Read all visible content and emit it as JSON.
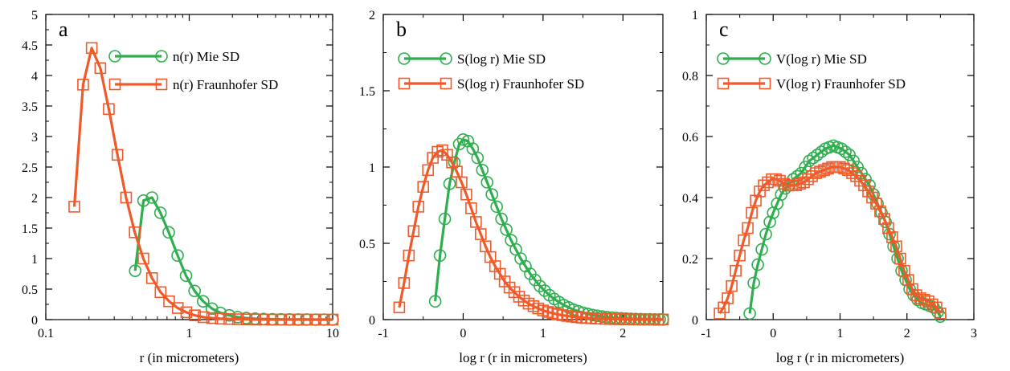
{
  "colors": {
    "mie": "#2eae4e",
    "fraunhofer": "#f05a2a",
    "axis": "#000000"
  },
  "chart_data": [
    {
      "type": "line",
      "panel_label": "a",
      "xlabel": "r (in micrometers)",
      "ylabel": "",
      "xscale": "log",
      "xlim": [
        0.1,
        10
      ],
      "ylim": [
        0,
        5
      ],
      "xticks": [
        0.1,
        1,
        10
      ],
      "xticklabels": [
        "0.1",
        "1",
        "10"
      ],
      "yticks": [
        0,
        0.5,
        1,
        1.5,
        2,
        2.5,
        3,
        3.5,
        4,
        4.5,
        5
      ],
      "yticklabels": [
        "0",
        "0.5",
        "1",
        "1.5",
        "2",
        "2.5",
        "3",
        "3.5",
        "4",
        "4.5",
        "5"
      ],
      "legend_position": "top-right",
      "grid": false,
      "series": [
        {
          "name": "n(r) Mie SD",
          "marker": "circle",
          "x": [
            0.42,
            0.48,
            0.55,
            0.63,
            0.72,
            0.83,
            0.95,
            1.09,
            1.25,
            1.44,
            1.65,
            1.9,
            2.18,
            2.5,
            2.88,
            3.3,
            3.8,
            4.36,
            5.0,
            5.75,
            6.6,
            7.6,
            8.7,
            10.0
          ],
          "y": [
            0.8,
            1.95,
            2.0,
            1.75,
            1.43,
            1.05,
            0.72,
            0.47,
            0.3,
            0.18,
            0.11,
            0.07,
            0.04,
            0.025,
            0.015,
            0.01,
            0.006,
            0.004,
            0.002,
            0.001,
            0.001,
            0.0,
            0.0,
            0.0
          ]
        },
        {
          "name": "n(r) Fraunhofer SD",
          "marker": "square",
          "x": [
            0.158,
            0.182,
            0.209,
            0.24,
            0.275,
            0.316,
            0.363,
            0.417,
            0.479,
            0.55,
            0.631,
            0.724,
            0.832,
            0.955,
            1.096,
            1.259,
            1.445,
            1.66,
            1.905,
            2.188,
            2.512,
            2.884,
            3.311,
            3.802,
            4.365,
            5.012,
            5.754,
            6.607,
            7.586,
            8.71,
            10.0
          ],
          "y": [
            1.85,
            3.85,
            4.45,
            4.12,
            3.45,
            2.7,
            2.0,
            1.43,
            1.0,
            0.68,
            0.45,
            0.3,
            0.19,
            0.12,
            0.07,
            0.04,
            0.025,
            0.015,
            0.01,
            0.006,
            0.004,
            0.002,
            0.001,
            0.0,
            0.0,
            0.0,
            0.0,
            0.0,
            0.0,
            0.0,
            0.0
          ]
        }
      ]
    },
    {
      "type": "line",
      "panel_label": "b",
      "xlabel": "log r (r in micrometers)",
      "ylabel": "",
      "xscale": "linear",
      "xlim": [
        -1,
        2.5
      ],
      "ylim": [
        0,
        2
      ],
      "xticks": [
        -1,
        0,
        1,
        2
      ],
      "xticklabels": [
        "-1",
        "0",
        "1",
        "2"
      ],
      "yticks": [
        0,
        0.5,
        1,
        1.5,
        2
      ],
      "yticklabels": [
        "0",
        "0.5",
        "1",
        "1.5",
        "2"
      ],
      "legend_position": "top-right",
      "grid": false,
      "series": [
        {
          "name": "S(log r) Mie SD",
          "marker": "circle",
          "x": [
            -0.35,
            -0.29,
            -0.23,
            -0.17,
            -0.11,
            -0.05,
            0.0,
            0.06,
            0.12,
            0.18,
            0.24,
            0.3,
            0.36,
            0.42,
            0.48,
            0.54,
            0.6,
            0.66,
            0.72,
            0.78,
            0.84,
            0.9,
            0.96,
            1.02,
            1.08,
            1.14,
            1.2,
            1.26,
            1.32,
            1.38,
            1.44,
            1.5,
            1.56,
            1.62,
            1.68,
            1.74,
            1.8,
            1.86,
            1.92,
            1.98,
            2.04,
            2.1,
            2.16,
            2.22,
            2.28,
            2.34,
            2.4,
            2.46,
            2.5
          ],
          "y": [
            0.12,
            0.42,
            0.66,
            0.89,
            1.03,
            1.15,
            1.18,
            1.17,
            1.12,
            1.06,
            0.98,
            0.9,
            0.82,
            0.74,
            0.66,
            0.59,
            0.52,
            0.46,
            0.4,
            0.35,
            0.3,
            0.26,
            0.22,
            0.19,
            0.16,
            0.135,
            0.115,
            0.095,
            0.08,
            0.065,
            0.055,
            0.045,
            0.037,
            0.03,
            0.025,
            0.02,
            0.016,
            0.013,
            0.01,
            0.008,
            0.006,
            0.005,
            0.004,
            0.003,
            0.002,
            0.002,
            0.001,
            0.001,
            0.001
          ]
        },
        {
          "name": "S(log r) Fraunhofer SD",
          "marker": "square",
          "x": [
            -0.8,
            -0.74,
            -0.68,
            -0.62,
            -0.56,
            -0.5,
            -0.44,
            -0.38,
            -0.32,
            -0.26,
            -0.2,
            -0.14,
            -0.08,
            -0.02,
            0.04,
            0.1,
            0.16,
            0.22,
            0.28,
            0.34,
            0.4,
            0.46,
            0.52,
            0.58,
            0.64,
            0.7,
            0.76,
            0.82,
            0.88,
            0.94,
            1.0,
            1.06,
            1.12,
            1.18,
            1.24,
            1.3,
            1.36,
            1.42,
            1.48,
            1.54,
            1.6,
            1.66,
            1.72,
            1.78,
            1.84,
            1.9,
            1.96,
            2.02,
            2.08,
            2.14,
            2.2,
            2.26,
            2.32,
            2.38,
            2.44,
            2.5
          ],
          "y": [
            0.08,
            0.24,
            0.42,
            0.58,
            0.74,
            0.87,
            0.98,
            1.06,
            1.1,
            1.11,
            1.08,
            1.03,
            0.97,
            0.9,
            0.82,
            0.73,
            0.64,
            0.56,
            0.48,
            0.41,
            0.35,
            0.3,
            0.25,
            0.21,
            0.18,
            0.15,
            0.125,
            0.105,
            0.088,
            0.073,
            0.06,
            0.05,
            0.042,
            0.035,
            0.029,
            0.024,
            0.02,
            0.016,
            0.013,
            0.011,
            0.009,
            0.007,
            0.006,
            0.005,
            0.004,
            0.003,
            0.003,
            0.002,
            0.002,
            0.001,
            0.001,
            0.001,
            0.001,
            0.001,
            0.001,
            0.001
          ]
        }
      ]
    },
    {
      "type": "line",
      "panel_label": "c",
      "xlabel": "log r (r in micrometers)",
      "ylabel": "",
      "xscale": "linear",
      "xlim": [
        -1,
        3
      ],
      "ylim": [
        0,
        1
      ],
      "xticks": [
        -1,
        0,
        1,
        2,
        3
      ],
      "xticklabels": [
        "-1",
        "0",
        "1",
        "2",
        "3"
      ],
      "yticks": [
        0,
        0.2,
        0.4,
        0.6,
        0.8,
        1
      ],
      "yticklabels": [
        "0",
        "0.2",
        "0.4",
        "0.6",
        "0.8",
        "1"
      ],
      "legend_position": "top-right",
      "grid": false,
      "series": [
        {
          "name": "V(log r) Mie SD",
          "marker": "circle",
          "x": [
            -0.35,
            -0.29,
            -0.23,
            -0.17,
            -0.11,
            -0.05,
            0.0,
            0.06,
            0.12,
            0.18,
            0.24,
            0.3,
            0.36,
            0.42,
            0.48,
            0.54,
            0.6,
            0.66,
            0.72,
            0.78,
            0.84,
            0.9,
            0.96,
            1.02,
            1.08,
            1.14,
            1.2,
            1.26,
            1.32,
            1.38,
            1.44,
            1.5,
            1.56,
            1.62,
            1.68,
            1.74,
            1.8,
            1.86,
            1.92,
            1.98,
            2.04,
            2.1,
            2.16,
            2.22,
            2.28,
            2.34,
            2.4,
            2.46,
            2.5
          ],
          "y": [
            0.02,
            0.12,
            0.18,
            0.23,
            0.28,
            0.32,
            0.35,
            0.38,
            0.41,
            0.43,
            0.44,
            0.46,
            0.47,
            0.48,
            0.5,
            0.52,
            0.53,
            0.54,
            0.55,
            0.56,
            0.565,
            0.57,
            0.565,
            0.56,
            0.55,
            0.54,
            0.52,
            0.5,
            0.48,
            0.46,
            0.44,
            0.41,
            0.38,
            0.35,
            0.32,
            0.28,
            0.24,
            0.2,
            0.16,
            0.13,
            0.1,
            0.08,
            0.065,
            0.055,
            0.05,
            0.045,
            0.04,
            0.025,
            0.01
          ]
        },
        {
          "name": "V(log r) Fraunhofer SD",
          "marker": "square",
          "x": [
            -0.8,
            -0.74,
            -0.68,
            -0.62,
            -0.56,
            -0.5,
            -0.44,
            -0.38,
            -0.32,
            -0.26,
            -0.2,
            -0.14,
            -0.08,
            -0.02,
            0.04,
            0.1,
            0.16,
            0.22,
            0.28,
            0.34,
            0.4,
            0.46,
            0.52,
            0.58,
            0.64,
            0.7,
            0.76,
            0.82,
            0.88,
            0.94,
            1.0,
            1.06,
            1.12,
            1.18,
            1.24,
            1.3,
            1.36,
            1.42,
            1.48,
            1.54,
            1.6,
            1.66,
            1.72,
            1.78,
            1.84,
            1.9,
            1.96,
            2.02,
            2.08,
            2.14,
            2.2,
            2.26,
            2.32,
            2.38,
            2.44,
            2.5
          ],
          "y": [
            0.02,
            0.04,
            0.07,
            0.11,
            0.16,
            0.21,
            0.26,
            0.3,
            0.35,
            0.39,
            0.42,
            0.44,
            0.45,
            0.46,
            0.46,
            0.455,
            0.445,
            0.44,
            0.44,
            0.44,
            0.445,
            0.45,
            0.46,
            0.47,
            0.48,
            0.485,
            0.49,
            0.495,
            0.5,
            0.5,
            0.5,
            0.495,
            0.49,
            0.48,
            0.47,
            0.455,
            0.44,
            0.42,
            0.4,
            0.38,
            0.355,
            0.33,
            0.3,
            0.27,
            0.24,
            0.2,
            0.16,
            0.13,
            0.1,
            0.08,
            0.07,
            0.065,
            0.06,
            0.05,
            0.04,
            0.02
          ]
        }
      ]
    }
  ]
}
